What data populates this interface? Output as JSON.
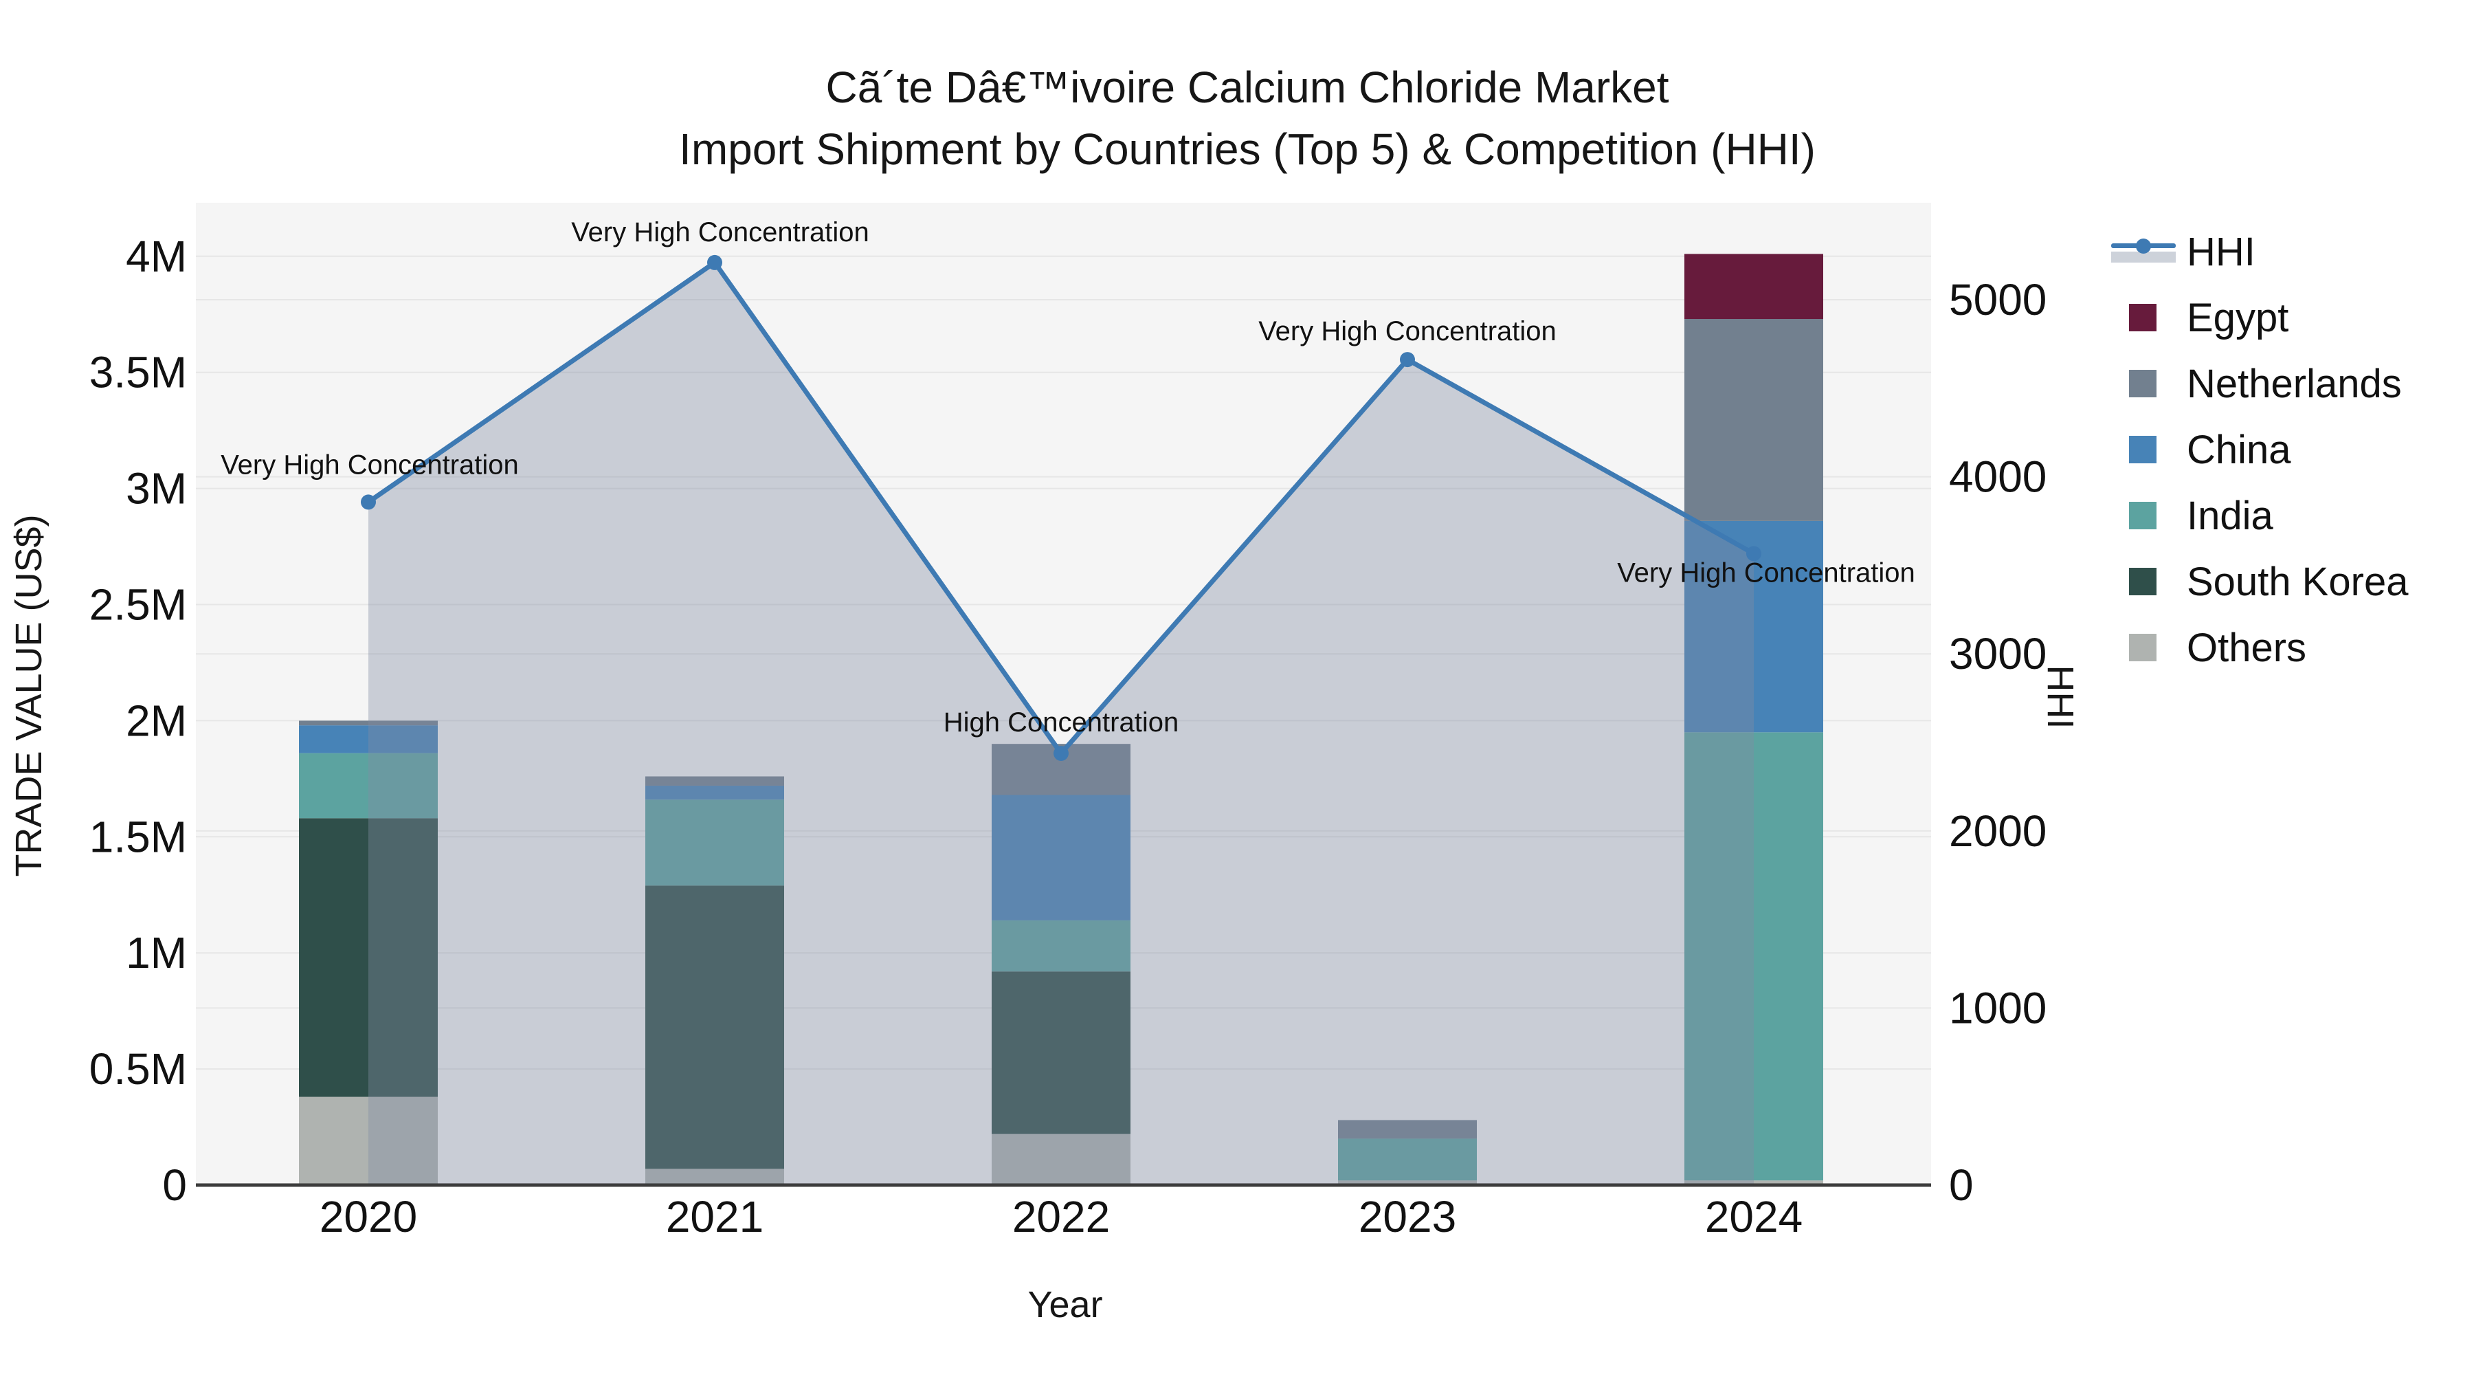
{
  "title": {
    "line1": "Cã´te Dâ€™ivoire Calcium Chloride Market",
    "line2": "Import Shipment by Countries (Top 5) & Competition (HHI)"
  },
  "axes": {
    "x": {
      "label": "Year",
      "categories": [
        "2020",
        "2021",
        "2022",
        "2023",
        "2024"
      ]
    },
    "y_left": {
      "label": "TRADE VALUE (US$)",
      "ticks": [
        {
          "v": 0,
          "label": "0"
        },
        {
          "v": 0.5,
          "label": "0.5M"
        },
        {
          "v": 1,
          "label": "1M"
        },
        {
          "v": 1.5,
          "label": "1.5M"
        },
        {
          "v": 2,
          "label": "2M"
        },
        {
          "v": 2.5,
          "label": "2.5M"
        },
        {
          "v": 3,
          "label": "3M"
        },
        {
          "v": 3.5,
          "label": "3.5M"
        },
        {
          "v": 4,
          "label": "4M"
        }
      ]
    },
    "y_right": {
      "label": "HHI",
      "ticks": [
        {
          "v": 0,
          "label": "0"
        },
        {
          "v": 1000,
          "label": "1000"
        },
        {
          "v": 2000,
          "label": "2000"
        },
        {
          "v": 3000,
          "label": "3000"
        },
        {
          "v": 4000,
          "label": "4000"
        },
        {
          "v": 5000,
          "label": "5000"
        }
      ]
    }
  },
  "legend": {
    "items": [
      {
        "label": "HHI",
        "type": "line",
        "color": "#3E7AB3"
      },
      {
        "label": "Egypt",
        "type": "square",
        "color": "#671B3C"
      },
      {
        "label": "Netherlands",
        "type": "square",
        "color": "#72808F"
      },
      {
        "label": "China",
        "type": "square",
        "color": "#4783B7"
      },
      {
        "label": "India",
        "type": "square",
        "color": "#5CA3A0"
      },
      {
        "label": "South Korea",
        "type": "square",
        "color": "#2F4F4A"
      },
      {
        "label": "Others",
        "type": "square",
        "color": "#AFB3B0"
      }
    ]
  },
  "chart_data": {
    "type": "combo",
    "bar_type": "stacked",
    "categories": [
      "2020",
      "2021",
      "2022",
      "2023",
      "2024"
    ],
    "bar_value_unit": "million US$",
    "series": [
      {
        "name": "Others",
        "color": "#AFB3B0",
        "values": [
          0.38,
          0.07,
          0.22,
          0.02,
          0.02
        ]
      },
      {
        "name": "South Korea",
        "color": "#2F4F4A",
        "values": [
          1.2,
          1.22,
          0.7,
          0,
          0
        ]
      },
      {
        "name": "India",
        "color": "#5CA3A0",
        "values": [
          0.28,
          0.37,
          0.22,
          0.18,
          1.93
        ]
      },
      {
        "name": "China",
        "color": "#4783B7",
        "values": [
          0.12,
          0.06,
          0.54,
          0,
          0.91
        ]
      },
      {
        "name": "Netherlands",
        "color": "#72808F",
        "values": [
          0.02,
          0.04,
          0.22,
          0.08,
          0.87
        ]
      },
      {
        "name": "Egypt",
        "color": "#671B3C",
        "values": [
          0,
          0,
          0,
          0,
          0.28
        ]
      }
    ],
    "bar_totals": [
      2.0,
      1.76,
      1.9,
      0.28,
      4.01
    ],
    "line": {
      "name": "HHI",
      "axis": "right",
      "color": "#3E7AB3",
      "area_fill": true,
      "values": [
        3857,
        5210,
        2438,
        4662,
        3566
      ],
      "annotations": [
        "Very High Concentration",
        "Very High Concentration",
        "High Concentration",
        "Very High Concentration",
        "Very High Concentration"
      ]
    },
    "y_left_range": [
      0,
      4.23
    ],
    "y_right_range": [
      0,
      5547
    ],
    "grid": true,
    "plot_background": "#F5F5F5",
    "grid_color": "#E6E6E6",
    "fill_color_rgba": "rgba(128,140,163,0.38)",
    "legend_position": "right"
  }
}
